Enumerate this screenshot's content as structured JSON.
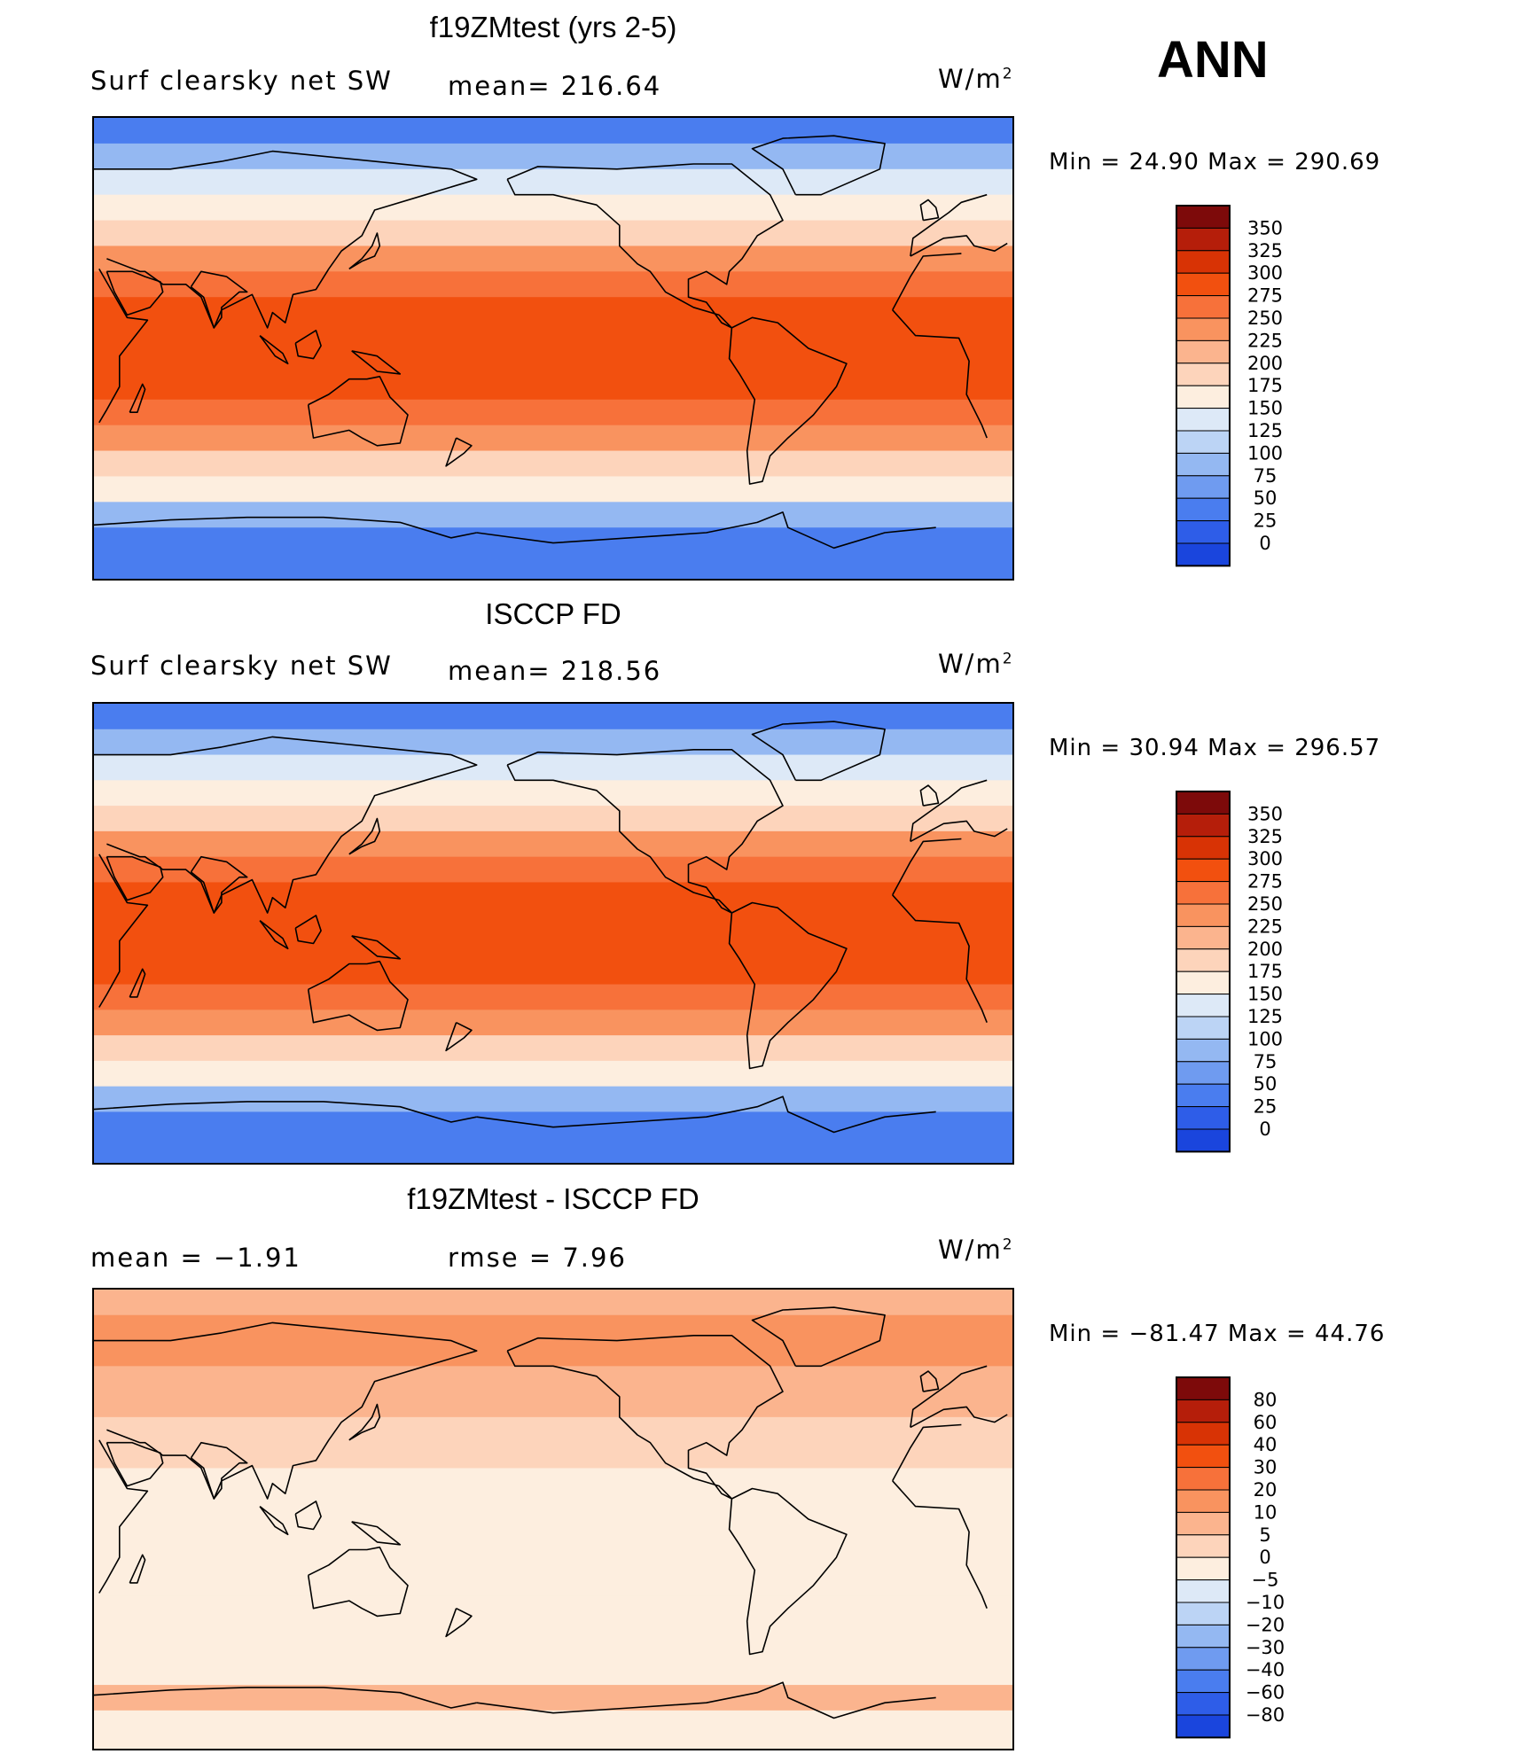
{
  "season": "ANN",
  "panels": [
    {
      "title": "f19ZMtest (yrs 2-5)",
      "left_label": "Surf  clearsky  net  SW",
      "center_label": "mean=  216.64",
      "units": "W/m",
      "units_sup": "2",
      "minmax": "Min  =    24.90  Max  =  290.69",
      "colorbar": {
        "labels": [
          "350",
          "325",
          "300",
          "275",
          "250",
          "225",
          "200",
          "175",
          "150",
          "125",
          "100",
          "75",
          "50",
          "25",
          "0"
        ],
        "colors": [
          "#7d0a0a",
          "#b51e0a",
          "#d83305",
          "#f2500f",
          "#f7713a",
          "#f9935f",
          "#fbb48e",
          "#fdd4bb",
          "#fdeedf",
          "#dde9f7",
          "#bcd4f5",
          "#94b8f2",
          "#6f9bf0",
          "#4a7def",
          "#2e5de8",
          "#1a45dd",
          "#0f30c7",
          "#0a1ea6",
          "#05107a"
        ]
      }
    },
    {
      "title": "ISCCP FD",
      "left_label": "Surf  clearsky  net  SW",
      "center_label": "mean=  218.56",
      "units": "W/m",
      "units_sup": "2",
      "minmax": "Min  =    30.94  Max  =  296.57",
      "colorbar": {
        "labels": [
          "350",
          "325",
          "300",
          "275",
          "250",
          "225",
          "200",
          "175",
          "150",
          "125",
          "100",
          "75",
          "50",
          "25",
          "0"
        ],
        "colors": [
          "#7d0a0a",
          "#b51e0a",
          "#d83305",
          "#f2500f",
          "#f7713a",
          "#f9935f",
          "#fbb48e",
          "#fdd4bb",
          "#fdeedf",
          "#dde9f7",
          "#bcd4f5",
          "#94b8f2",
          "#6f9bf0",
          "#4a7def",
          "#2e5de8",
          "#1a45dd",
          "#0f30c7",
          "#0a1ea6",
          "#05107a"
        ]
      }
    },
    {
      "title": "f19ZMtest - ISCCP FD",
      "left_label": "mean  =     −1.91",
      "center_label": "rmse  =      7.96",
      "units": "W/m",
      "units_sup": "2",
      "minmax": "Min  =  −81.47  Max  =    44.76",
      "colorbar": {
        "labels": [
          "80",
          "60",
          "40",
          "30",
          "20",
          "10",
          "5",
          "0",
          "−5",
          "−10",
          "−20",
          "−30",
          "−40",
          "−60",
          "−80"
        ],
        "colors": [
          "#7d0a0a",
          "#b51e0a",
          "#d83305",
          "#f2500f",
          "#f7713a",
          "#f9935f",
          "#fbb48e",
          "#fdd4bb",
          "#fdeedf",
          "#dde9f7",
          "#bcd4f5",
          "#94b8f2",
          "#6f9bf0",
          "#4a7def",
          "#2e5de8",
          "#1a45dd",
          "#0f30c7",
          "#0a1ea6",
          "#05107a"
        ]
      }
    }
  ],
  "chart_data": [
    {
      "type": "heatmap",
      "title": "f19ZMtest (yrs 2-5)",
      "variable": "Surf clearsky net SW",
      "units": "W/m2",
      "mean": 216.64,
      "min": 24.9,
      "max": 290.69,
      "contour_levels": [
        0,
        25,
        50,
        75,
        100,
        125,
        150,
        175,
        200,
        225,
        250,
        275,
        300,
        325,
        350
      ],
      "zonal_bands": [
        {
          "lat_range": [
            80,
            90
          ],
          "value": 40
        },
        {
          "lat_range": [
            70,
            80
          ],
          "value": 85
        },
        {
          "lat_range": [
            60,
            70
          ],
          "value": 130
        },
        {
          "lat_range": [
            50,
            60
          ],
          "value": 160
        },
        {
          "lat_range": [
            40,
            50
          ],
          "value": 190
        },
        {
          "lat_range": [
            30,
            40
          ],
          "value": 235
        },
        {
          "lat_range": [
            20,
            30
          ],
          "value": 262
        },
        {
          "lat_range": [
            0,
            20
          ],
          "value": 285
        },
        {
          "lat_range": [
            -20,
            0
          ],
          "value": 282
        },
        {
          "lat_range": [
            -30,
            -20
          ],
          "value": 260
        },
        {
          "lat_range": [
            -40,
            -30
          ],
          "value": 230
        },
        {
          "lat_range": [
            -50,
            -40
          ],
          "value": 190
        },
        {
          "lat_range": [
            -60,
            -50
          ],
          "value": 150
        },
        {
          "lat_range": [
            -70,
            -60
          ],
          "value": 90
        },
        {
          "lat_range": [
            -90,
            -70
          ],
          "value": 35
        }
      ]
    },
    {
      "type": "heatmap",
      "title": "ISCCP FD",
      "variable": "Surf clearsky net SW",
      "units": "W/m2",
      "mean": 218.56,
      "min": 30.94,
      "max": 296.57,
      "contour_levels": [
        0,
        25,
        50,
        75,
        100,
        125,
        150,
        175,
        200,
        225,
        250,
        275,
        300,
        325,
        350
      ],
      "zonal_bands": [
        {
          "lat_range": [
            80,
            90
          ],
          "value": 45
        },
        {
          "lat_range": [
            70,
            80
          ],
          "value": 85
        },
        {
          "lat_range": [
            60,
            70
          ],
          "value": 125
        },
        {
          "lat_range": [
            50,
            60
          ],
          "value": 160
        },
        {
          "lat_range": [
            40,
            50
          ],
          "value": 195
        },
        {
          "lat_range": [
            30,
            40
          ],
          "value": 235
        },
        {
          "lat_range": [
            20,
            30
          ],
          "value": 265
        },
        {
          "lat_range": [
            0,
            20
          ],
          "value": 288
        },
        {
          "lat_range": [
            -20,
            0
          ],
          "value": 286
        },
        {
          "lat_range": [
            -30,
            -20
          ],
          "value": 262
        },
        {
          "lat_range": [
            -40,
            -30
          ],
          "value": 232
        },
        {
          "lat_range": [
            -50,
            -40
          ],
          "value": 192
        },
        {
          "lat_range": [
            -60,
            -50
          ],
          "value": 150
        },
        {
          "lat_range": [
            -70,
            -60
          ],
          "value": 90
        },
        {
          "lat_range": [
            -90,
            -70
          ],
          "value": 40
        }
      ]
    },
    {
      "type": "heatmap",
      "title": "f19ZMtest - ISCCP FD",
      "units": "W/m2",
      "mean": -1.91,
      "rmse": 7.96,
      "min": -81.47,
      "max": 44.76,
      "contour_levels": [
        -80,
        -60,
        -40,
        -30,
        -20,
        -10,
        -5,
        0,
        5,
        10,
        20,
        30,
        40,
        60,
        80
      ],
      "zonal_bands": [
        {
          "lat_range": [
            80,
            90
          ],
          "value": 8
        },
        {
          "lat_range": [
            60,
            80
          ],
          "value": 12
        },
        {
          "lat_range": [
            40,
            60
          ],
          "value": 7
        },
        {
          "lat_range": [
            20,
            40
          ],
          "value": 3
        },
        {
          "lat_range": [
            10,
            20
          ],
          "value": -3
        },
        {
          "lat_range": [
            -10,
            10
          ],
          "value": -4
        },
        {
          "lat_range": [
            -30,
            -10
          ],
          "value": -3
        },
        {
          "lat_range": [
            -50,
            -30
          ],
          "value": -2
        },
        {
          "lat_range": [
            -65,
            -50
          ],
          "value": -4
        },
        {
          "lat_range": [
            -75,
            -65
          ],
          "value": 6
        },
        {
          "lat_range": [
            -90,
            -75
          ],
          "value": -4
        }
      ]
    }
  ]
}
